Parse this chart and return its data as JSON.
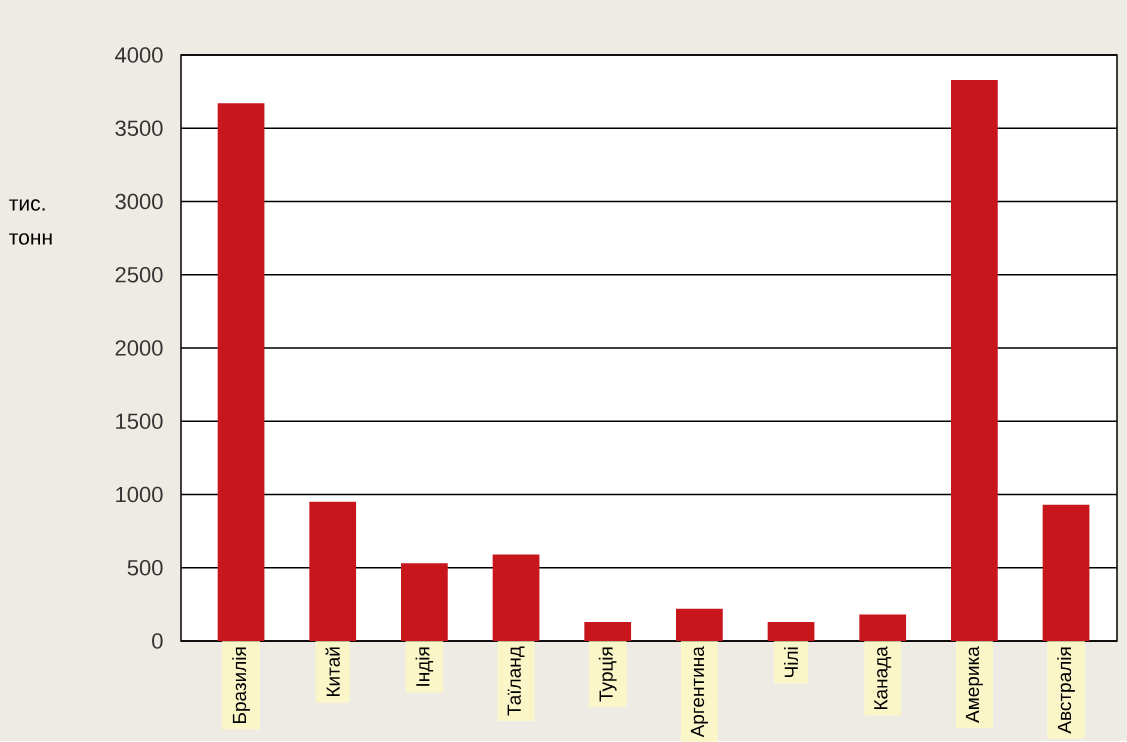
{
  "chart_data": {
    "type": "bar",
    "ylabel": "тис. тонн",
    "categories": [
      "Бразилія",
      "Китай",
      "Індія",
      "Таїланд",
      "Турція",
      "Аргентина",
      "Чілі",
      "Канада",
      "Америка",
      "Австралія"
    ],
    "values": [
      3670,
      950,
      530,
      590,
      130,
      220,
      130,
      180,
      3830,
      930
    ],
    "color": "#c8161d",
    "ylim": [
      0,
      4000
    ],
    "yticks": [
      0,
      500,
      1000,
      1500,
      2000,
      2500,
      3000,
      3500,
      4000
    ],
    "grid": "y"
  }
}
